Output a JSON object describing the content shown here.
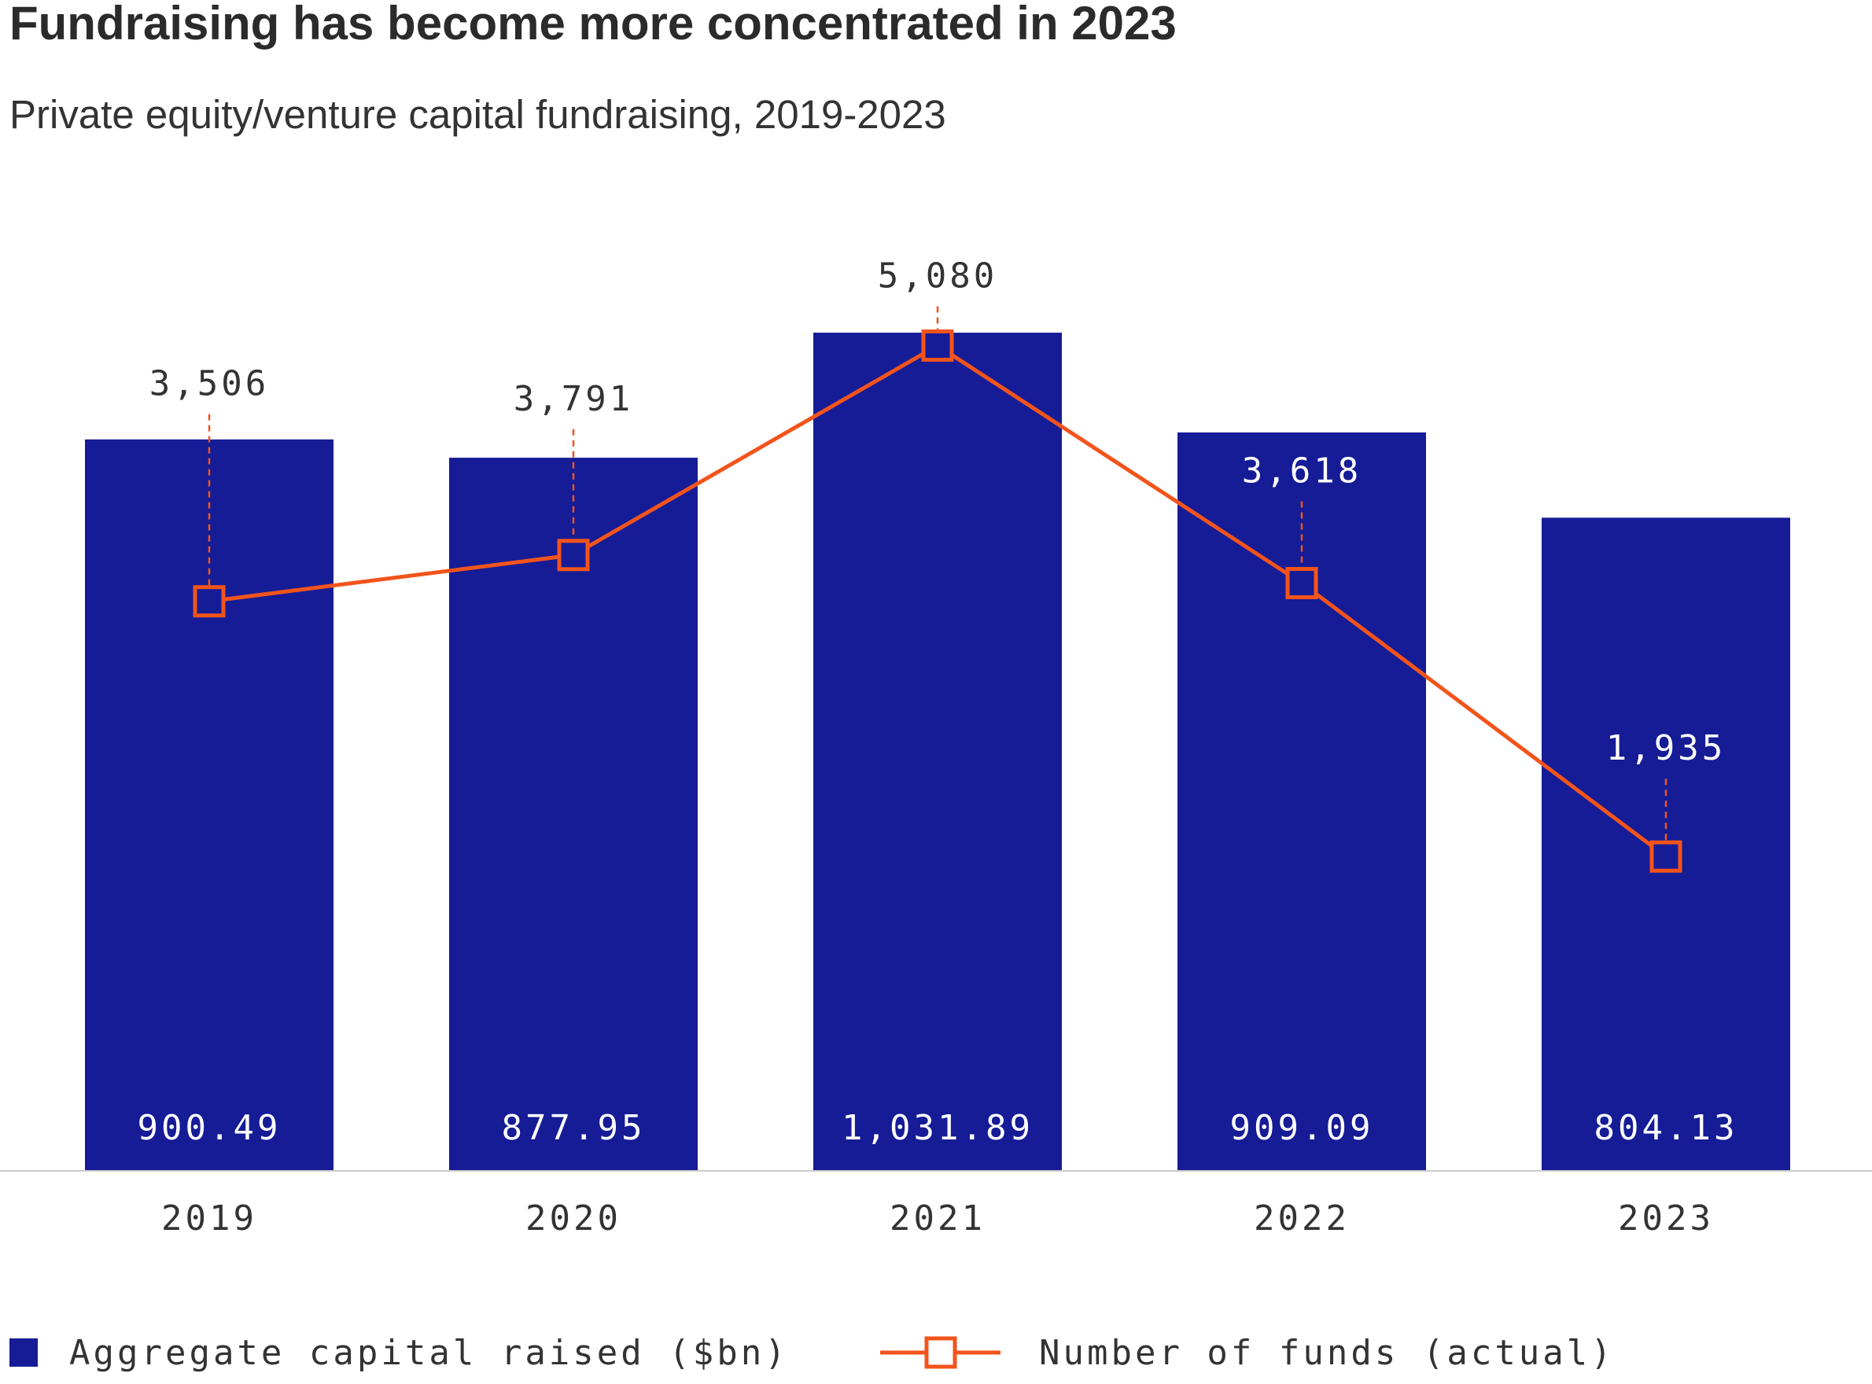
{
  "chart_data": {
    "type": "bar+line",
    "title": "Fundraising has become more concentrated in 2023",
    "subtitle": "Private equity/venture capital fundraising, 2019-2023",
    "categories": [
      "2019",
      "2020",
      "2021",
      "2022",
      "2023"
    ],
    "series": [
      {
        "name": "Aggregate capital raised ($bn)",
        "type": "bar",
        "values": [
          900.49,
          877.95,
          1031.89,
          909.09,
          804.13
        ],
        "labels": [
          "900.49",
          "877.95",
          "1,031.89",
          "909.09",
          "804.13"
        ],
        "color": "#161c96"
      },
      {
        "name": "Number of funds (actual)",
        "type": "line",
        "marker": "open-square",
        "values": [
          3506,
          3791,
          5080,
          3618,
          1935
        ],
        "labels": [
          "3,506",
          "3,791",
          "5,080",
          "3,618",
          "1,935"
        ],
        "color": "#f2541b"
      }
    ],
    "xlabel": "",
    "ylabel": "",
    "grid": false,
    "legend": "bottom-left"
  },
  "colors": {
    "text": "#333333",
    "axis": "#cccccc"
  }
}
